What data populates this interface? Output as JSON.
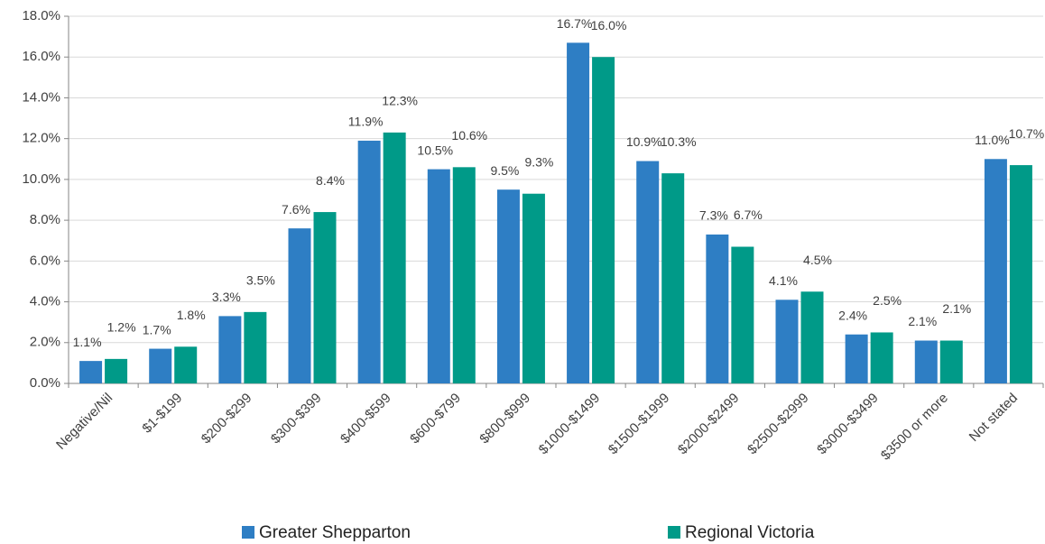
{
  "chart_data": {
    "type": "bar",
    "categories": [
      "Negative/Nil",
      "$1-$199",
      "$200-$299",
      "$300-$399",
      "$400-$599",
      "$600-$799",
      "$800-$999",
      "$1000-$1499",
      "$1500-$1999",
      "$2000-$2499",
      "$2500-$2999",
      "$3000-$3499",
      "$3500 or more",
      "Not stated"
    ],
    "series": [
      {
        "name": "Greater Shepparton",
        "color": "#2e7ec4",
        "values": [
          1.1,
          1.7,
          3.3,
          7.6,
          11.9,
          10.5,
          9.5,
          16.7,
          10.9,
          7.3,
          4.1,
          2.4,
          2.1,
          11.0
        ],
        "value_labels": [
          "1.1%",
          "1.7%",
          "3.3%",
          "7.6%",
          "11.9%",
          "10.5%",
          "9.5%",
          "16.7%",
          "10.9%",
          "7.3%",
          "4.1%",
          "2.4%",
          "2.1%",
          "11.0%"
        ]
      },
      {
        "name": "Regional Victoria",
        "color": "#009a88",
        "values": [
          1.2,
          1.8,
          3.5,
          8.4,
          12.3,
          10.6,
          9.3,
          16.0,
          10.3,
          6.7,
          4.5,
          2.5,
          2.1,
          10.7
        ],
        "value_labels": [
          "1.2%",
          "1.8%",
          "3.5%",
          "8.4%",
          "12.3%",
          "10.6%",
          "9.3%",
          "16.0%",
          "10.3%",
          "6.7%",
          "4.5%",
          "2.5%",
          "2.1%",
          "10.7%"
        ]
      }
    ],
    "ylim": [
      0,
      18
    ],
    "yticks": [
      {
        "value": 0,
        "label": "0.0%"
      },
      {
        "value": 2,
        "label": "2.0%"
      },
      {
        "value": 4,
        "label": "4.0%"
      },
      {
        "value": 6,
        "label": "6.0%"
      },
      {
        "value": 8,
        "label": "8.0%"
      },
      {
        "value": 10,
        "label": "10.0%"
      },
      {
        "value": 12,
        "label": "12.0%"
      },
      {
        "value": 14,
        "label": "14.0%"
      },
      {
        "value": 16,
        "label": "16.0%"
      },
      {
        "value": 18,
        "label": "18.0%"
      }
    ],
    "grid": true,
    "legend": "bottom"
  }
}
